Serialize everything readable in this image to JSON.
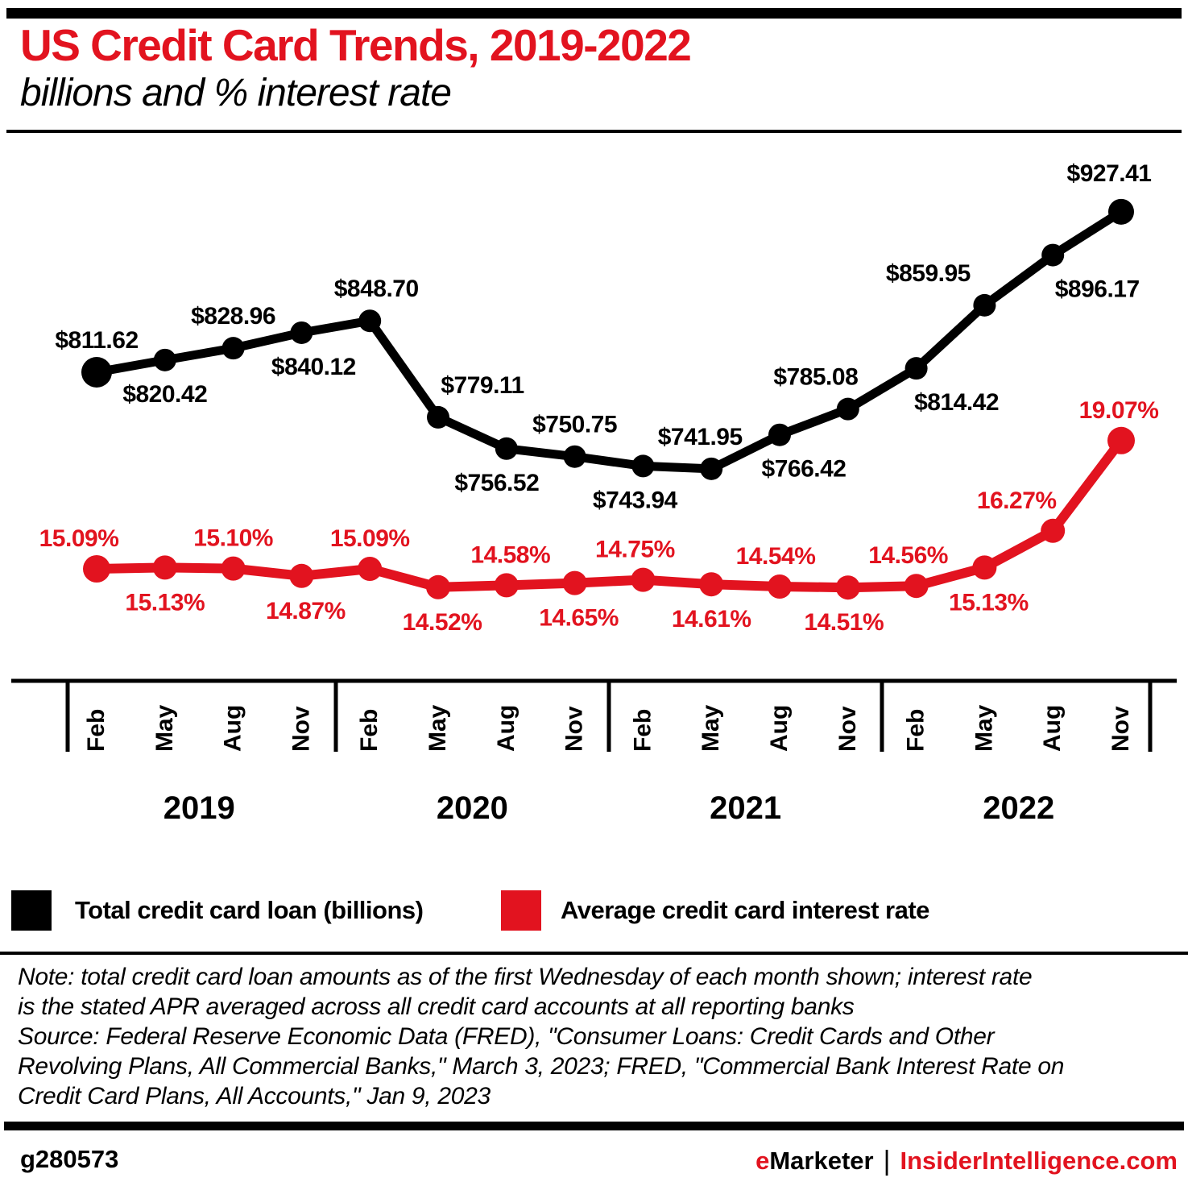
{
  "header": {
    "title": "US Credit Card Trends, 2019-2022",
    "subtitle": "billions and % interest rate"
  },
  "chart_data": {
    "type": "line",
    "x_axis": {
      "months": [
        "Feb",
        "May",
        "Aug",
        "Nov",
        "Feb",
        "May",
        "Aug",
        "Nov",
        "Feb",
        "May",
        "Aug",
        "Nov",
        "Feb",
        "May",
        "Aug",
        "Nov"
      ],
      "years": [
        "2019",
        "2020",
        "2021",
        "2022"
      ]
    },
    "series": [
      {
        "name": "Total credit card loan (billions)",
        "unit": "USD billions",
        "color": "#000000",
        "values": [
          811.62,
          820.42,
          828.96,
          840.12,
          848.7,
          779.11,
          756.52,
          750.75,
          743.94,
          741.95,
          766.42,
          785.08,
          814.42,
          859.95,
          896.17,
          927.41
        ],
        "labels": [
          "$811.62",
          "$820.42",
          "$828.96",
          "$840.12",
          "$848.70",
          "$779.11",
          "$756.52",
          "$750.75",
          "$743.94",
          "$741.95",
          "$766.42",
          "$785.08",
          "$814.42",
          "$859.95",
          "$896.17",
          "$927.41"
        ]
      },
      {
        "name": "Average credit card interest rate",
        "unit": "%",
        "color": "#e2131f",
        "values": [
          15.09,
          15.13,
          15.1,
          14.87,
          15.09,
          14.52,
          14.58,
          14.65,
          14.75,
          14.61,
          14.54,
          14.51,
          14.56,
          15.13,
          16.27,
          19.07
        ],
        "labels": [
          "15.09%",
          "15.13%",
          "15.10%",
          "14.87%",
          "15.09%",
          "14.52%",
          "14.58%",
          "14.65%",
          "14.75%",
          "14.61%",
          "14.54%",
          "14.51%",
          "14.56%",
          "15.13%",
          "16.27%",
          "19.07%"
        ]
      }
    ]
  },
  "legend": {
    "items": [
      {
        "label": "Total credit card loan (billions)",
        "color": "#000000"
      },
      {
        "label": "Average credit card interest rate",
        "color": "#e2131f"
      }
    ]
  },
  "notes": {
    "lines": [
      "Note: total credit card loan amounts as of the first Wednesday of each month shown; interest rate",
      "is the stated APR averaged across all credit card accounts at all reporting banks",
      "Source: Federal Reserve Economic Data (FRED), \"Consumer Loans: Credit Cards and Other",
      "Revolving Plans, All Commercial Banks,\" March 3, 2023; FRED, \"Commercial Bank Interest Rate on",
      "Credit Card Plans, All Accounts,\" Jan 9, 2023"
    ]
  },
  "footer": {
    "chart_id": "g280573",
    "brand_e": "e",
    "brand_rest": "Marketer",
    "separator": "|",
    "site": "InsiderIntelligence.com"
  }
}
